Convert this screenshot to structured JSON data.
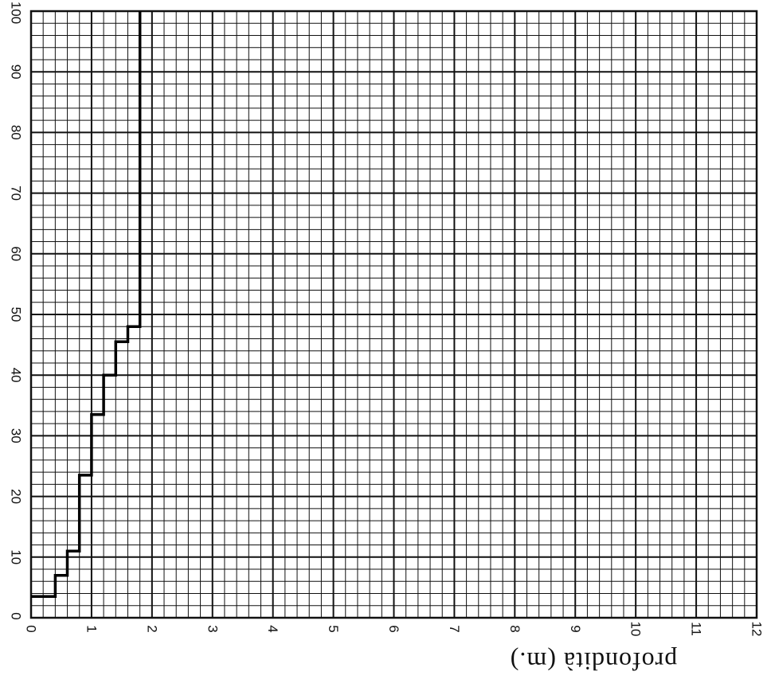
{
  "chart_data": {
    "type": "line",
    "step": true,
    "axis_title": "profondità (m.)",
    "xlim": [
      0,
      12
    ],
    "ylim": [
      0,
      100
    ],
    "x_ticks": [
      "0",
      "1",
      "2",
      "3",
      "4",
      "5",
      "6",
      "7",
      "8",
      "9",
      "10",
      "11",
      "12"
    ],
    "y_ticks": [
      "0",
      "10",
      "20",
      "30",
      "40",
      "50",
      "60",
      "70",
      "80",
      "90",
      "100"
    ],
    "grid": true,
    "series": [
      {
        "x": [
          0,
          0.4,
          0.4,
          0.6,
          0.6,
          0.8,
          0.8,
          1.0,
          1.0,
          1.2,
          1.2,
          1.4,
          1.4,
          1.6,
          1.6,
          1.8,
          1.8
        ],
        "y": [
          3.5,
          3.5,
          7,
          7,
          11,
          11,
          23.5,
          23.5,
          33.5,
          33.5,
          40,
          40,
          45.5,
          45.5,
          48,
          48,
          100
        ]
      }
    ]
  }
}
